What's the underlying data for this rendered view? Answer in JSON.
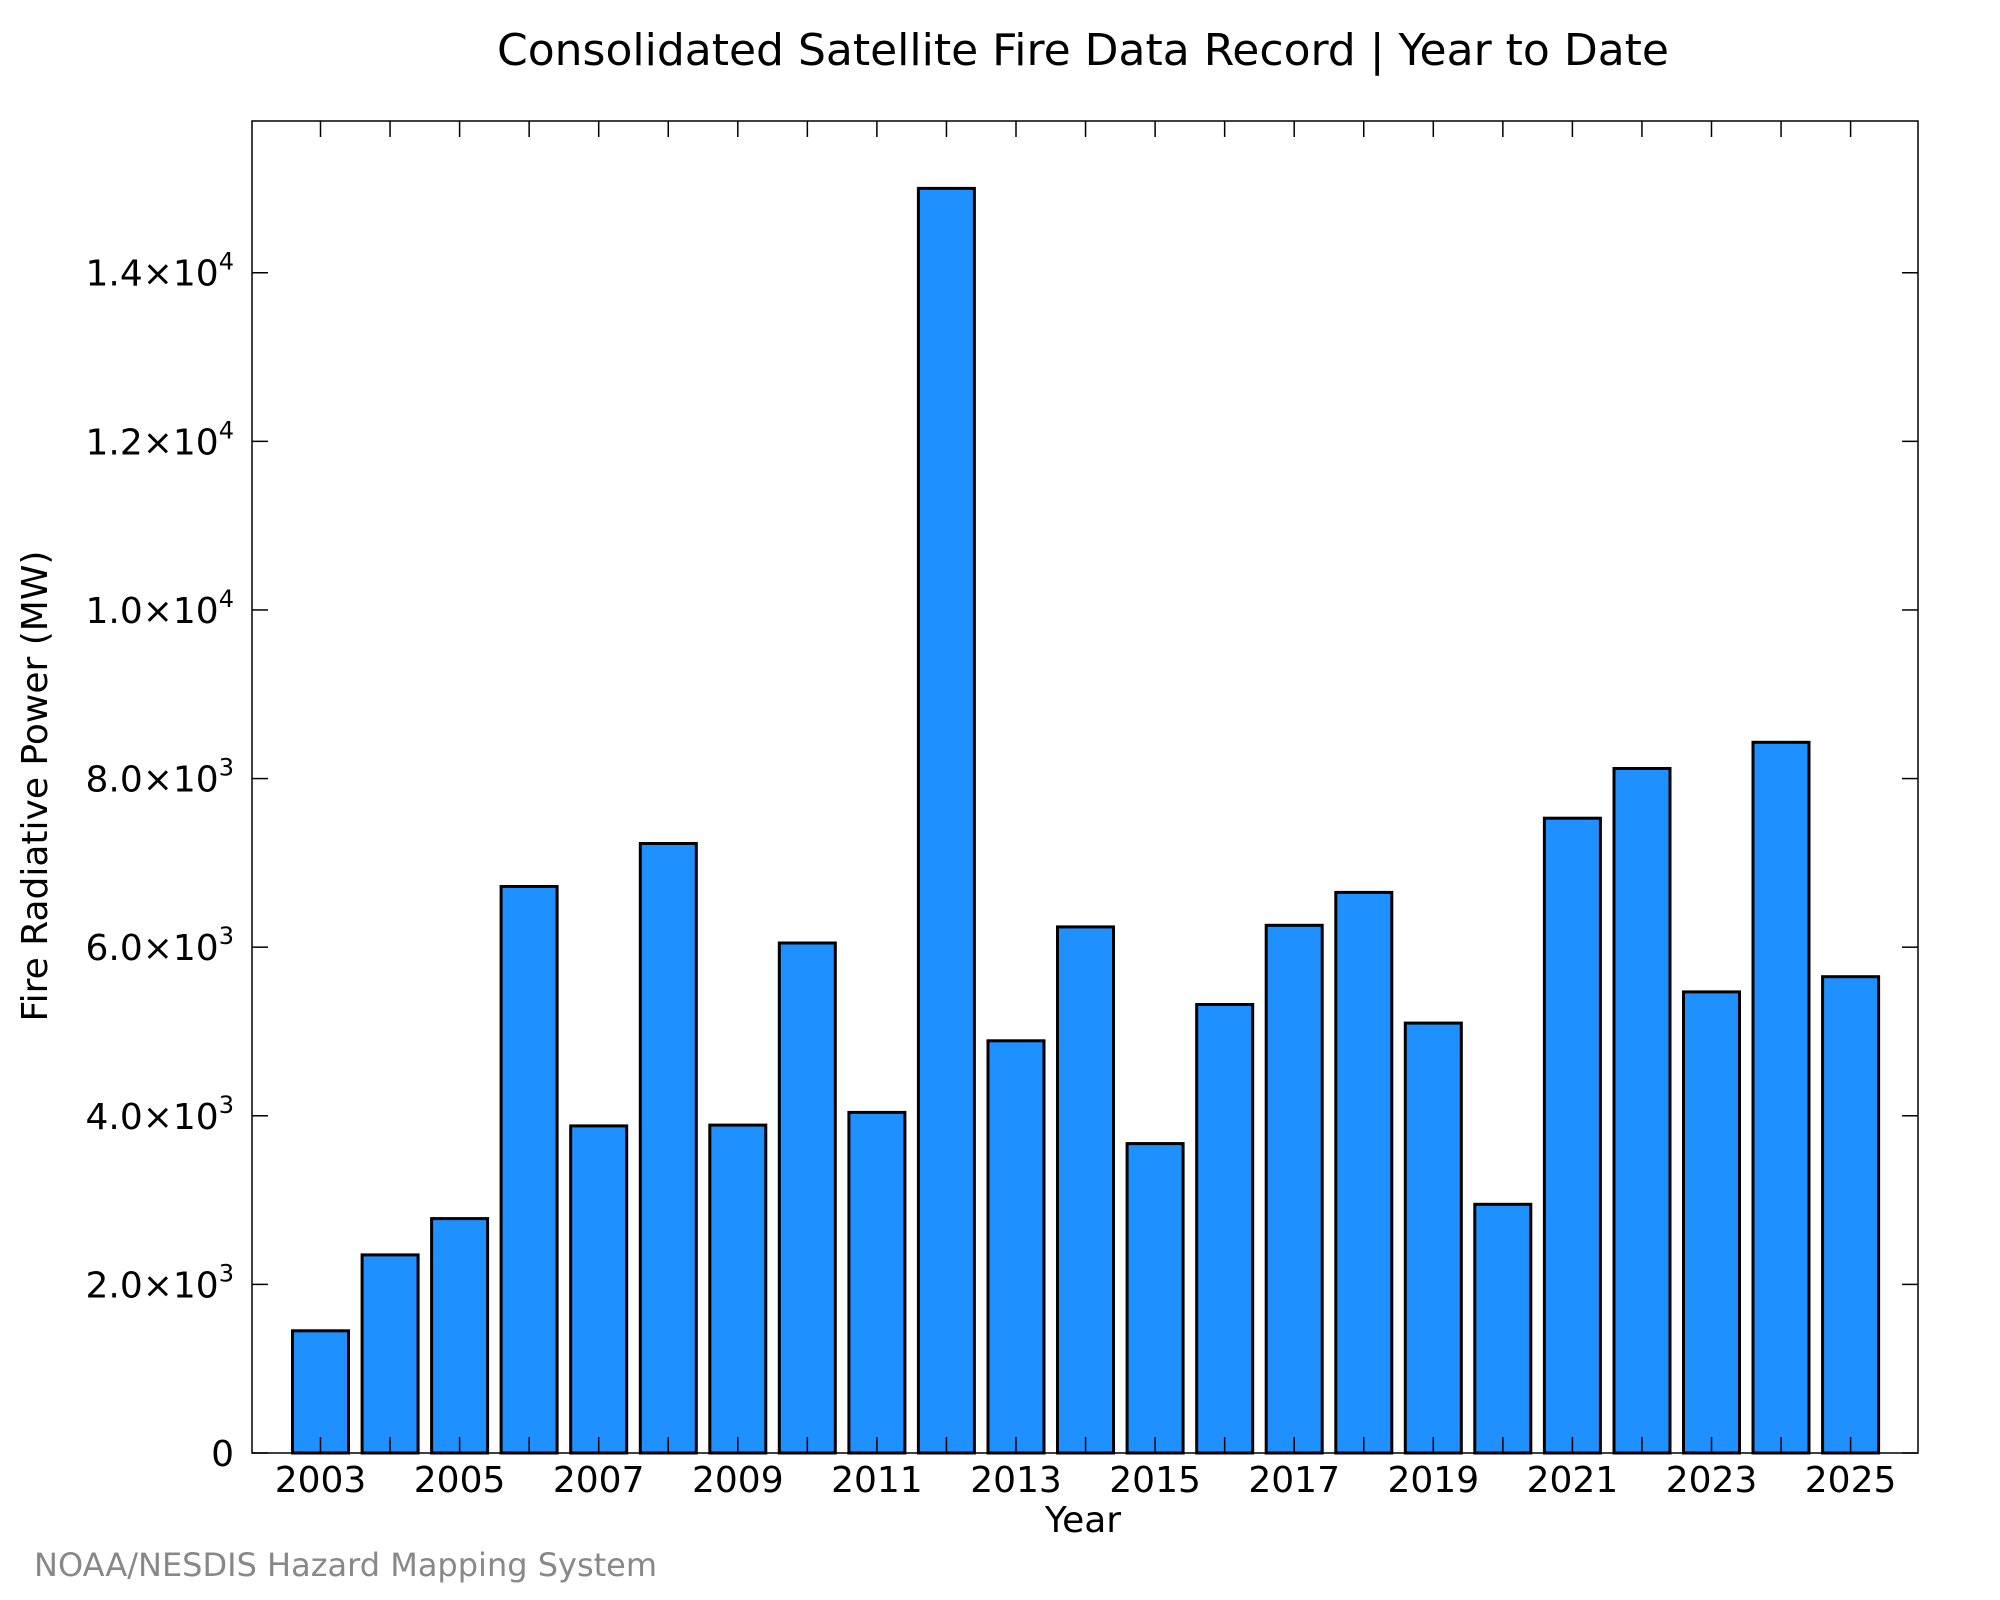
{
  "chart_data": {
    "type": "bar",
    "title": "Consolidated Satellite Fire Data Record | Year to Date",
    "xlabel": "Year",
    "ylabel": "Fire Radiative Power (MW)",
    "categories": [
      "2003",
      "2004",
      "2005",
      "2006",
      "2007",
      "2008",
      "2009",
      "2010",
      "2011",
      "2012",
      "2013",
      "2014",
      "2015",
      "2016",
      "2017",
      "2018",
      "2019",
      "2020",
      "2021",
      "2022",
      "2023",
      "2024",
      "2025"
    ],
    "values": [
      1450,
      2350,
      2780,
      6720,
      3880,
      7230,
      3890,
      6050,
      4040,
      15000,
      4890,
      6240,
      3670,
      5320,
      6260,
      6650,
      5100,
      2950,
      7530,
      8120,
      5470,
      8430,
      5650
    ],
    "ylim": [
      0,
      15800
    ],
    "y_ticks": [
      {
        "value": 0,
        "mantissa": "0",
        "exp": ""
      },
      {
        "value": 2000,
        "mantissa": "2.0×10",
        "exp": "3"
      },
      {
        "value": 4000,
        "mantissa": "4.0×10",
        "exp": "3"
      },
      {
        "value": 6000,
        "mantissa": "6.0×10",
        "exp": "3"
      },
      {
        "value": 8000,
        "mantissa": "8.0×10",
        "exp": "3"
      },
      {
        "value": 10000,
        "mantissa": "1.0×10",
        "exp": "4"
      },
      {
        "value": 12000,
        "mantissa": "1.2×10",
        "exp": "4"
      },
      {
        "value": 14000,
        "mantissa": "1.4×10",
        "exp": "4"
      }
    ],
    "x_tick_labels": [
      "2003",
      "2005",
      "2007",
      "2009",
      "2011",
      "2013",
      "2015",
      "2017",
      "2019",
      "2021",
      "2023",
      "2025"
    ],
    "bar_color": "#1e90ff",
    "edge_color": "#000000",
    "grid": false,
    "legend": "none"
  },
  "footer": {
    "credit": "NOAA/NESDIS Hazard Mapping System"
  }
}
